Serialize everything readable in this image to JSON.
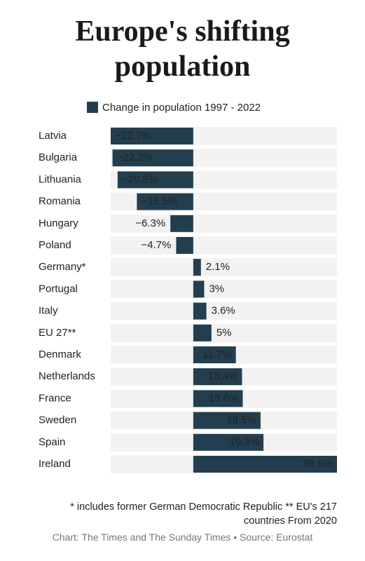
{
  "chart_data": {
    "type": "hbar",
    "title": "Europe's shifting population",
    "legend": "Change in population 1997 - 2022",
    "color": "#233e4e",
    "categories": [
      "Latvia",
      "Bulgaria",
      "Lithuania",
      "Romania",
      "Hungary",
      "Poland",
      "Germany*",
      "Portugal",
      "Italy",
      "EU 27**",
      "Denmark",
      "Netherlands",
      "France",
      "Sweden",
      "Spain",
      "Ireland"
    ],
    "values": [
      -22.7,
      -22.2,
      -20.8,
      -15.5,
      -6.3,
      -4.7,
      2.1,
      3,
      3.6,
      5,
      11.7,
      13.4,
      13.6,
      18.5,
      19.3,
      39.5
    ],
    "value_labels": [
      "−22.7%",
      "−22.2%",
      "−20.8%",
      "−15.5%",
      "−6.3%",
      "−4.7%",
      "2.1%",
      "3%",
      "3.6%",
      "5%",
      "11.7%",
      "13.4%",
      "13.6%",
      "18.5%",
      "19.3%",
      "39.5%"
    ],
    "xlim": [
      -22.7,
      39.5
    ],
    "footnote": "* includes former German Democratic Republic ** EU's 217 countries From 2020",
    "source": "Chart: The Times and The Sunday Times • Source: Eurostat"
  }
}
